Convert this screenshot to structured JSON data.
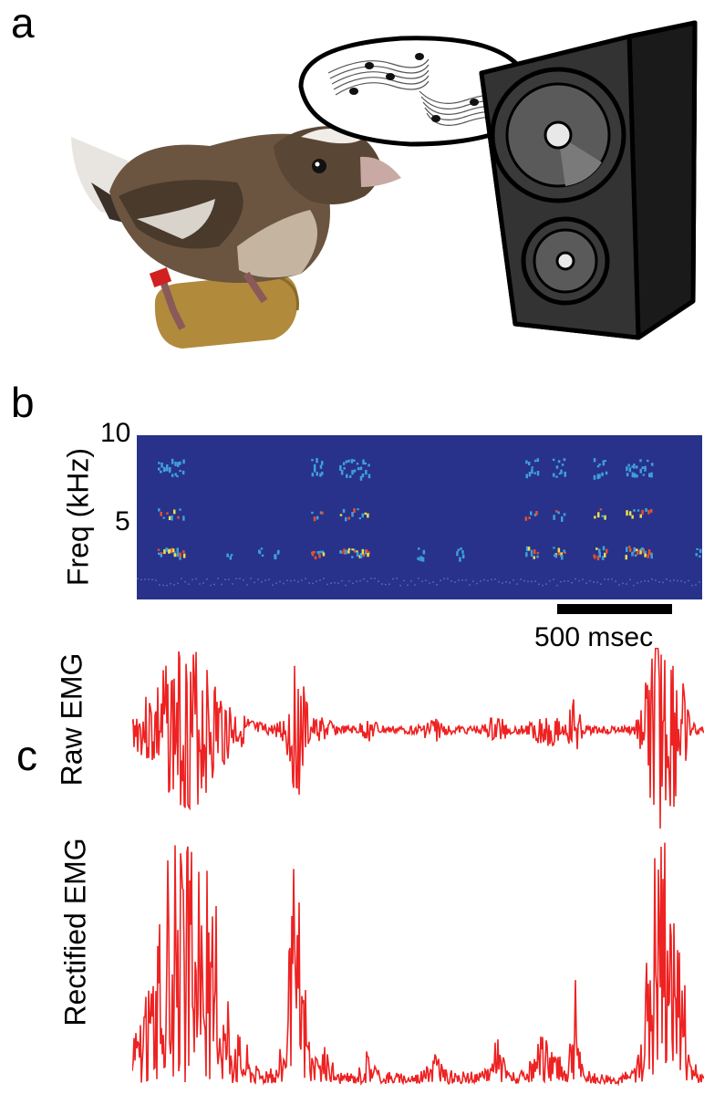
{
  "panels": {
    "a": "a",
    "b": "b",
    "c": "c"
  },
  "spectrogram": {
    "ylabel": "Freq (kHz)",
    "ticks": [
      "10",
      "5"
    ],
    "scalebar_label": "500 msec",
    "colors": {
      "background": "#28328a",
      "low": "#3fa0d8",
      "mid": "#e8e04a",
      "high": "#e8502a"
    }
  },
  "raw_emg": {
    "ylabel": "Raw EMG",
    "color": "#ee2222"
  },
  "rectified_emg": {
    "ylabel": "Rectified EMG",
    "color": "#ee2222"
  },
  "illustration": {
    "items": [
      "bird-photo-icon",
      "speech-bubble-icon",
      "music-notes-icon",
      "speaker-icon"
    ]
  }
}
